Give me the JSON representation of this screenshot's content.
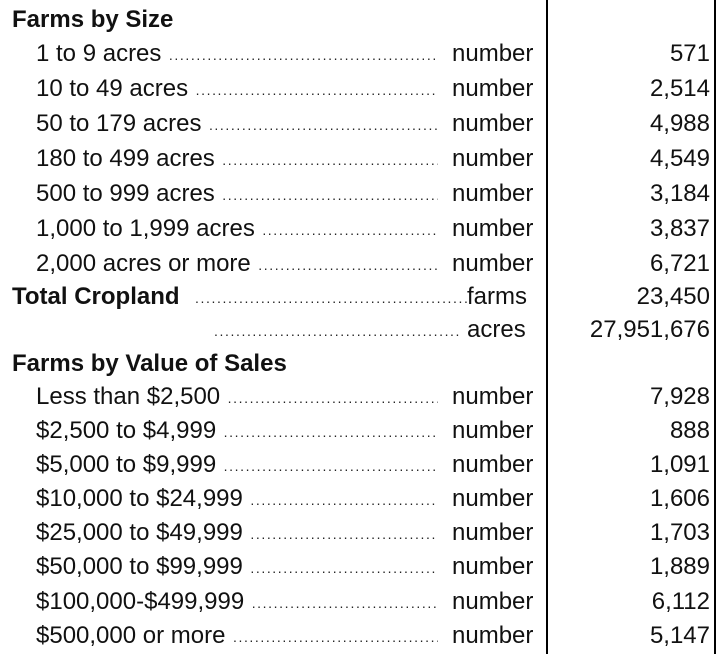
{
  "farms_by_size": {
    "heading": "Farms by Size",
    "rows": [
      {
        "label": "1 to 9 acres",
        "unit": "number",
        "value": "571"
      },
      {
        "label": "10 to 49 acres",
        "unit": "number",
        "value": "2,514"
      },
      {
        "label": "50 to 179 acres",
        "unit": "number",
        "value": "4,988"
      },
      {
        "label": "180 to 499 acres",
        "unit": "number",
        "value": "4,549"
      },
      {
        "label": "500 to 999 acres",
        "unit": "number",
        "value": "3,184"
      },
      {
        "label": "1,000 to 1,999 acres",
        "unit": "number",
        "value": "3,837"
      },
      {
        "label": "2,000 acres or more",
        "unit": "number",
        "value": "6,721"
      }
    ]
  },
  "total_cropland": {
    "label": "Total Cropland",
    "farms_unit": "farms",
    "farms_value": "23,450",
    "acres_unit": "acres",
    "acres_value": "27,951,676"
  },
  "farms_by_value": {
    "heading": "Farms by Value of Sales",
    "rows": [
      {
        "label": "Less than $2,500",
        "unit": "number",
        "value": "7,928"
      },
      {
        "label": "$2,500 to $4,999",
        "unit": "number",
        "value": "888"
      },
      {
        "label": "$5,000 to $9,999",
        "unit": "number",
        "value": "1,091"
      },
      {
        "label": "$10,000 to $24,999",
        "unit": "number",
        "value": "1,606"
      },
      {
        "label": "$25,000 to $49,999",
        "unit": "number",
        "value": "1,703"
      },
      {
        "label": "$50,000 to $99,999",
        "unit": "number",
        "value": "1,889"
      },
      {
        "label": "$100,000-$499,999",
        "unit": "number",
        "value": "6,112"
      },
      {
        "label": "$500,000 or more",
        "unit": "number",
        "value": "5,147"
      }
    ]
  }
}
